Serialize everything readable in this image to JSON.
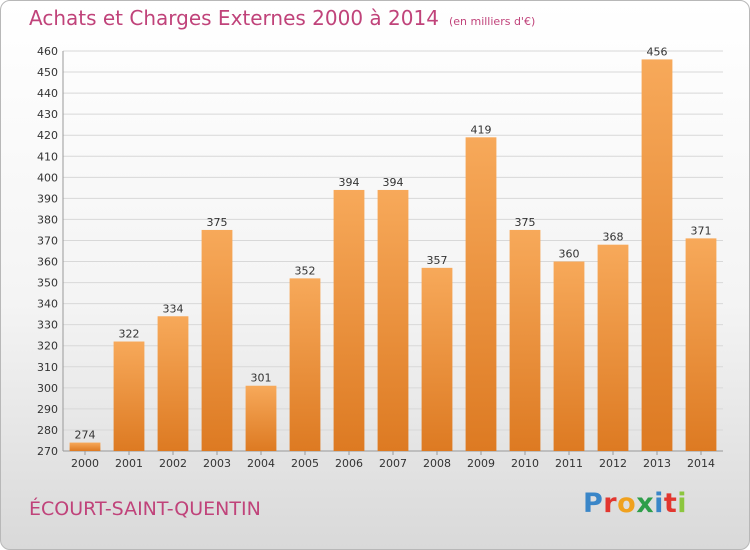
{
  "header": {
    "title": "Achats et Charges Externes 2000 à 2014",
    "subtitle": "(en milliers d'€)"
  },
  "footer": {
    "place": "ÉCOURT-SAINT-QUENTIN",
    "logo_letters": [
      "P",
      "r",
      "o",
      "x",
      "i",
      "t",
      "i"
    ],
    "logo_colors": [
      "#3a86c8",
      "#e2362f",
      "#f0a11e",
      "#2e9e4a",
      "#3a86c8",
      "#e2362f",
      "#8cc63e"
    ]
  },
  "colors": {
    "bar_light": "#f7a95a",
    "bar_dark": "#dd7a22",
    "grid": "#d8d8d8",
    "text": "#333333",
    "accent": "#c0437a"
  },
  "chart_data": {
    "type": "bar",
    "title": "Achats et Charges Externes 2000 à 2014",
    "subtitle": "(en milliers d'€)",
    "categories": [
      "2000",
      "2001",
      "2002",
      "2003",
      "2004",
      "2005",
      "2006",
      "2007",
      "2008",
      "2009",
      "2010",
      "2011",
      "2012",
      "2013",
      "2014"
    ],
    "values": [
      274,
      322,
      334,
      375,
      301,
      352,
      394,
      394,
      357,
      419,
      375,
      360,
      368,
      456,
      371
    ],
    "ylim": [
      270,
      460
    ],
    "yticks": [
      270,
      280,
      290,
      300,
      310,
      320,
      330,
      340,
      350,
      360,
      370,
      380,
      390,
      400,
      410,
      420,
      430,
      440,
      450,
      460
    ],
    "grid": true,
    "xlabel": "",
    "ylabel": ""
  }
}
